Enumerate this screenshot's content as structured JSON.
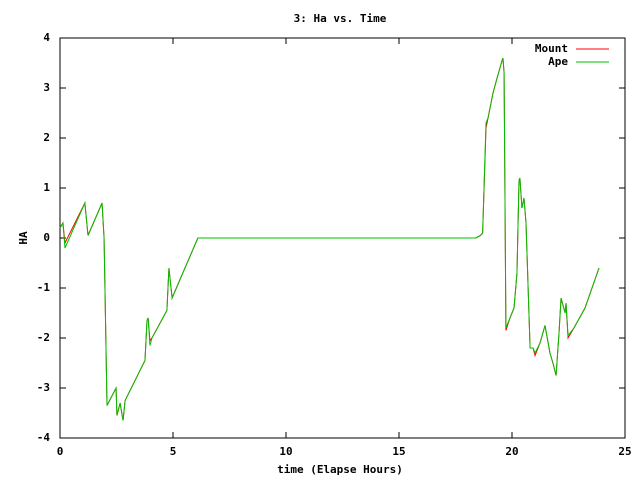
{
  "chart_data": {
    "type": "line",
    "title": "3: Ha vs. Time",
    "x_label": "time (Elapse Hours)",
    "y_label": "HA",
    "x": [
      0,
      0.13,
      0.22,
      1.1,
      1.24,
      1.86,
      1.95,
      2.08,
      2.48,
      2.52,
      2.66,
      2.79,
      2.88,
      3.76,
      3.85,
      3.9,
      3.98,
      4.07,
      4.73,
      4.82,
      4.96,
      6.1,
      18.4,
      18.6,
      18.7,
      18.85,
      18.94,
      19.16,
      19.34,
      19.56,
      19.6,
      19.65,
      19.73,
      19.91,
      20.09,
      20.22,
      20.31,
      20.35,
      20.44,
      20.53,
      20.62,
      20.8,
      20.93,
      21.02,
      21.24,
      21.46,
      21.68,
      21.81,
      21.95,
      22.08,
      22.17,
      22.35,
      22.39,
      22.48,
      22.74,
      23.23,
      23.85
    ],
    "series": [
      {
        "name": "Mount",
        "color": "#ff0000",
        "values": [
          0.2,
          0.3,
          -0.1,
          0.7,
          0.05,
          0.7,
          0,
          -3.35,
          -3.0,
          -3.55,
          -3.3,
          -3.65,
          -3.25,
          -2.45,
          -1.65,
          -1.6,
          -2.05,
          -2.0,
          -1.45,
          -0.6,
          -1.2,
          0,
          0,
          0.05,
          0.1,
          2.2,
          2.4,
          2.9,
          3.2,
          3.55,
          3.6,
          3.3,
          -1.85,
          -1.6,
          -1.4,
          -0.7,
          1.15,
          1.2,
          0.6,
          0.8,
          0.3,
          -2.2,
          -2.2,
          -2.35,
          -2.1,
          -1.75,
          -2.3,
          -2.5,
          -2.75,
          -1.9,
          -1.2,
          -1.5,
          -1.3,
          -2.0,
          -1.8,
          -1.4,
          -0.6
        ]
      },
      {
        "name": "Ape",
        "color": "#00c000",
        "values": [
          0.2,
          0.3,
          -0.2,
          0.7,
          0.05,
          0.7,
          0,
          -3.35,
          -3.0,
          -3.55,
          -3.3,
          -3.65,
          -3.25,
          -2.45,
          -1.65,
          -1.6,
          -2.15,
          -2.0,
          -1.45,
          -0.6,
          -1.2,
          0,
          0,
          0.05,
          0.1,
          2.3,
          2.4,
          2.9,
          3.2,
          3.55,
          3.6,
          3.3,
          -1.8,
          -1.6,
          -1.4,
          -0.7,
          1.15,
          1.2,
          0.6,
          0.8,
          0.3,
          -2.2,
          -2.2,
          -2.3,
          -2.1,
          -1.75,
          -2.3,
          -2.5,
          -2.75,
          -1.9,
          -1.2,
          -1.5,
          -1.3,
          -1.95,
          -1.8,
          -1.4,
          -0.6
        ]
      }
    ],
    "xlim": [
      0,
      25
    ],
    "xticks": [
      0,
      5,
      10,
      15,
      20,
      25
    ],
    "ylim": [
      -4,
      4
    ],
    "yticks": [
      -4,
      -3,
      -2,
      -1,
      0,
      1,
      2,
      3,
      4
    ],
    "grid": false,
    "legend": "top-right"
  }
}
